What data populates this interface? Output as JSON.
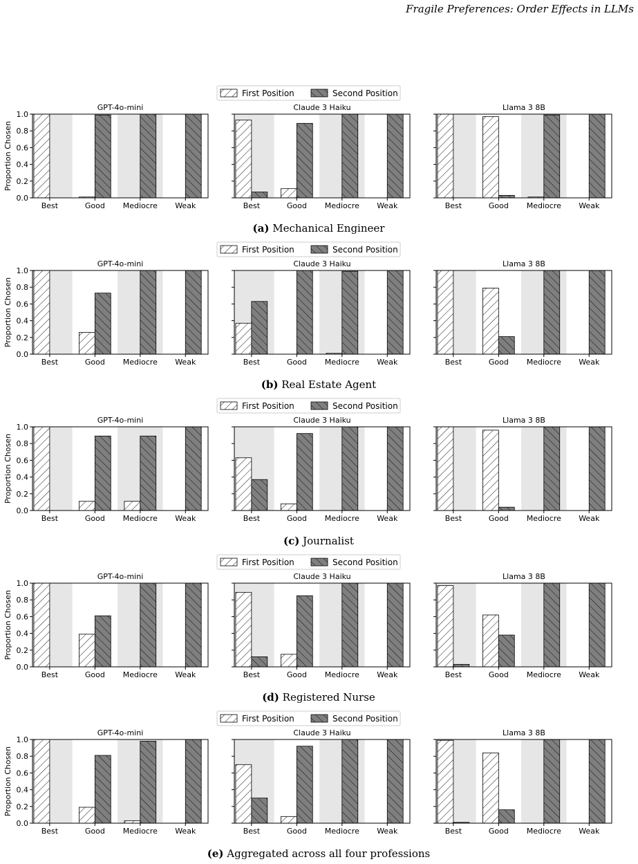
{
  "header": {
    "running_title": "Fragile Preferences: Order Effects in LLMs"
  },
  "legend": {
    "first_label": "First Position",
    "second_label": "Second Position"
  },
  "axis": {
    "ylabel": "Proportion Chosen",
    "yticks": [
      "0.0",
      "0.2",
      "0.4",
      "0.6",
      "0.8",
      "1.0"
    ]
  },
  "models": [
    "GPT-4o-mini",
    "Claude 3 Haiku",
    "Llama 3 8B"
  ],
  "categories": [
    "Best",
    "Good",
    "Mediocre",
    "Weak"
  ],
  "chart_data": [
    {
      "type": "bar",
      "panel": "(a)",
      "caption": "Mechanical Engineer",
      "ylim": [
        0,
        1
      ],
      "subplots": [
        {
          "model": "GPT-4o-mini",
          "categories": [
            "Best",
            "Good",
            "Mediocre",
            "Weak"
          ],
          "series": [
            {
              "name": "First Position",
              "values": [
                1.0,
                0.01,
                0.0,
                0.0
              ]
            },
            {
              "name": "Second Position",
              "values": [
                0.0,
                0.99,
                1.0,
                1.0
              ]
            }
          ]
        },
        {
          "model": "Claude 3 Haiku",
          "categories": [
            "Best",
            "Good",
            "Mediocre",
            "Weak"
          ],
          "series": [
            {
              "name": "First Position",
              "values": [
                0.93,
                0.11,
                0.0,
                0.0
              ]
            },
            {
              "name": "Second Position",
              "values": [
                0.07,
                0.89,
                1.0,
                1.0
              ]
            }
          ]
        },
        {
          "model": "Llama 3 8B",
          "categories": [
            "Best",
            "Good",
            "Mediocre",
            "Weak"
          ],
          "series": [
            {
              "name": "First Position",
              "values": [
                1.0,
                0.97,
                0.01,
                0.0
              ]
            },
            {
              "name": "Second Position",
              "values": [
                0.0,
                0.03,
                0.99,
                1.0
              ]
            }
          ]
        }
      ]
    },
    {
      "type": "bar",
      "panel": "(b)",
      "caption": "Real Estate Agent",
      "ylim": [
        0,
        1
      ],
      "subplots": [
        {
          "model": "GPT-4o-mini",
          "categories": [
            "Best",
            "Good",
            "Mediocre",
            "Weak"
          ],
          "series": [
            {
              "name": "First Position",
              "values": [
                1.0,
                0.26,
                0.0,
                0.0
              ]
            },
            {
              "name": "Second Position",
              "values": [
                0.0,
                0.73,
                1.0,
                1.0
              ]
            }
          ]
        },
        {
          "model": "Claude 3 Haiku",
          "categories": [
            "Best",
            "Good",
            "Mediocre",
            "Weak"
          ],
          "series": [
            {
              "name": "First Position",
              "values": [
                0.37,
                0.0,
                0.01,
                0.0
              ]
            },
            {
              "name": "Second Position",
              "values": [
                0.63,
                1.0,
                0.99,
                1.0
              ]
            }
          ]
        },
        {
          "model": "Llama 3 8B",
          "categories": [
            "Best",
            "Good",
            "Mediocre",
            "Weak"
          ],
          "series": [
            {
              "name": "First Position",
              "values": [
                1.0,
                0.79,
                0.0,
                0.0
              ]
            },
            {
              "name": "Second Position",
              "values": [
                0.0,
                0.21,
                1.0,
                1.0
              ]
            }
          ]
        }
      ]
    },
    {
      "type": "bar",
      "panel": "(c)",
      "caption": "Journalist",
      "ylim": [
        0,
        1
      ],
      "subplots": [
        {
          "model": "GPT-4o-mini",
          "categories": [
            "Best",
            "Good",
            "Mediocre",
            "Weak"
          ],
          "series": [
            {
              "name": "First Position",
              "values": [
                1.0,
                0.11,
                0.11,
                0.0
              ]
            },
            {
              "name": "Second Position",
              "values": [
                0.0,
                0.89,
                0.89,
                1.0
              ]
            }
          ]
        },
        {
          "model": "Claude 3 Haiku",
          "categories": [
            "Best",
            "Good",
            "Mediocre",
            "Weak"
          ],
          "series": [
            {
              "name": "First Position",
              "values": [
                0.63,
                0.08,
                0.0,
                0.0
              ]
            },
            {
              "name": "Second Position",
              "values": [
                0.37,
                0.92,
                1.0,
                1.0
              ]
            }
          ]
        },
        {
          "model": "Llama 3 8B",
          "categories": [
            "Best",
            "Good",
            "Mediocre",
            "Weak"
          ],
          "series": [
            {
              "name": "First Position",
              "values": [
                1.0,
                0.96,
                0.0,
                0.0
              ]
            },
            {
              "name": "Second Position",
              "values": [
                0.0,
                0.04,
                1.0,
                1.0
              ]
            }
          ]
        }
      ]
    },
    {
      "type": "bar",
      "panel": "(d)",
      "caption": "Registered Nurse",
      "ylim": [
        0,
        1
      ],
      "subplots": [
        {
          "model": "GPT-4o-mini",
          "categories": [
            "Best",
            "Good",
            "Mediocre",
            "Weak"
          ],
          "series": [
            {
              "name": "First Position",
              "values": [
                1.0,
                0.39,
                0.0,
                0.0
              ]
            },
            {
              "name": "Second Position",
              "values": [
                0.0,
                0.61,
                1.0,
                1.0
              ]
            }
          ]
        },
        {
          "model": "Claude 3 Haiku",
          "categories": [
            "Best",
            "Good",
            "Mediocre",
            "Weak"
          ],
          "series": [
            {
              "name": "First Position",
              "values": [
                0.89,
                0.15,
                0.0,
                0.0
              ]
            },
            {
              "name": "Second Position",
              "values": [
                0.12,
                0.85,
                1.0,
                1.0
              ]
            }
          ]
        },
        {
          "model": "Llama 3 8B",
          "categories": [
            "Best",
            "Good",
            "Mediocre",
            "Weak"
          ],
          "series": [
            {
              "name": "First Position",
              "values": [
                0.97,
                0.62,
                0.0,
                0.0
              ]
            },
            {
              "name": "Second Position",
              "values": [
                0.03,
                0.38,
                1.0,
                1.0
              ]
            }
          ]
        }
      ]
    },
    {
      "type": "bar",
      "panel": "(e)",
      "caption": "Aggregated across all four professions",
      "ylim": [
        0,
        1
      ],
      "subplots": [
        {
          "model": "GPT-4o-mini",
          "categories": [
            "Best",
            "Good",
            "Mediocre",
            "Weak"
          ],
          "series": [
            {
              "name": "First Position",
              "values": [
                1.0,
                0.19,
                0.03,
                0.0
              ]
            },
            {
              "name": "Second Position",
              "values": [
                0.0,
                0.81,
                0.98,
                1.0
              ]
            }
          ]
        },
        {
          "model": "Claude 3 Haiku",
          "categories": [
            "Best",
            "Good",
            "Mediocre",
            "Weak"
          ],
          "series": [
            {
              "name": "First Position",
              "values": [
                0.7,
                0.08,
                0.0,
                0.0
              ]
            },
            {
              "name": "Second Position",
              "values": [
                0.3,
                0.92,
                1.0,
                1.0
              ]
            }
          ]
        },
        {
          "model": "Llama 3 8B",
          "categories": [
            "Best",
            "Good",
            "Mediocre",
            "Weak"
          ],
          "series": [
            {
              "name": "First Position",
              "values": [
                0.99,
                0.84,
                0.0,
                0.0
              ]
            },
            {
              "name": "Second Position",
              "values": [
                0.01,
                0.16,
                1.0,
                1.0
              ]
            }
          ]
        }
      ]
    }
  ]
}
